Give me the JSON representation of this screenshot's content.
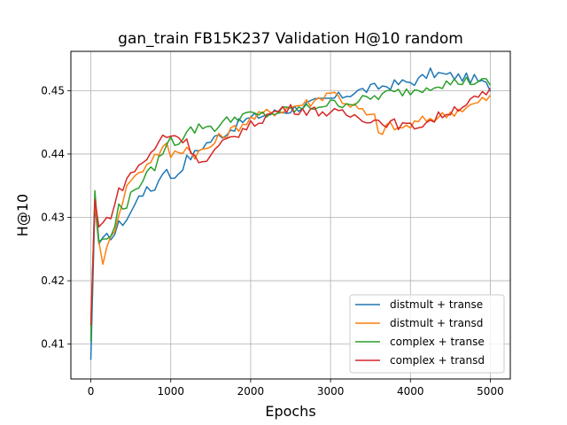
{
  "chart_data": {
    "type": "line",
    "title": "gan_train FB15K237 Validation H@10 random",
    "xlabel": "Epochs",
    "ylabel": "H@10",
    "xlim": [
      -250,
      5250
    ],
    "ylim": [
      0.4045,
      0.4562
    ],
    "xticks": [
      0,
      1000,
      2000,
      3000,
      4000,
      5000
    ],
    "yticks": [
      0.41,
      0.42,
      0.43,
      0.44,
      0.45
    ],
    "xtick_labels": [
      "0",
      "1000",
      "2000",
      "3000",
      "4000",
      "5000"
    ],
    "ytick_labels": [
      "0.41",
      "0.42",
      "0.43",
      "0.44",
      "0.45"
    ],
    "grid": true,
    "legend_position": "lower-right",
    "series": [
      {
        "name": "distmult + transe",
        "color": "#1f77b4",
        "keypoints": [
          [
            0,
            0.4075
          ],
          [
            50,
            0.4318
          ],
          [
            100,
            0.4258
          ],
          [
            150,
            0.4262
          ],
          [
            200,
            0.4268
          ],
          [
            300,
            0.4275
          ],
          [
            350,
            0.4288
          ],
          [
            450,
            0.4298
          ],
          [
            550,
            0.4318
          ],
          [
            600,
            0.4338
          ],
          [
            750,
            0.4343
          ],
          [
            800,
            0.4348
          ],
          [
            850,
            0.4358
          ],
          [
            900,
            0.4372
          ],
          [
            950,
            0.4382
          ],
          [
            1000,
            0.4358
          ],
          [
            1100,
            0.4372
          ],
          [
            1200,
            0.4392
          ],
          [
            1300,
            0.44
          ],
          [
            1400,
            0.4413
          ],
          [
            1550,
            0.4425
          ],
          [
            1700,
            0.4435
          ],
          [
            1900,
            0.4452
          ],
          [
            2100,
            0.446
          ],
          [
            2300,
            0.4465
          ],
          [
            2500,
            0.447
          ],
          [
            2700,
            0.4478
          ],
          [
            2900,
            0.4483
          ],
          [
            3100,
            0.449
          ],
          [
            3300,
            0.4498
          ],
          [
            3500,
            0.4503
          ],
          [
            3700,
            0.4508
          ],
          [
            3900,
            0.4512
          ],
          [
            4100,
            0.4516
          ],
          [
            4250,
            0.4528
          ],
          [
            4400,
            0.4525
          ],
          [
            4600,
            0.4522
          ],
          [
            4800,
            0.4518
          ],
          [
            5000,
            0.4505
          ]
        ]
      },
      {
        "name": "distmult + transd",
        "color": "#ff7f0e",
        "keypoints": [
          [
            0,
            0.4125
          ],
          [
            50,
            0.4325
          ],
          [
            100,
            0.4262
          ],
          [
            150,
            0.4232
          ],
          [
            200,
            0.4248
          ],
          [
            300,
            0.4285
          ],
          [
            400,
            0.433
          ],
          [
            500,
            0.4362
          ],
          [
            600,
            0.4368
          ],
          [
            700,
            0.4385
          ],
          [
            800,
            0.4398
          ],
          [
            900,
            0.4408
          ],
          [
            950,
            0.4412
          ],
          [
            1000,
            0.4398
          ],
          [
            1100,
            0.4405
          ],
          [
            1200,
            0.441
          ],
          [
            1300,
            0.44
          ],
          [
            1400,
            0.4405
          ],
          [
            1500,
            0.4412
          ],
          [
            1600,
            0.4425
          ],
          [
            1800,
            0.444
          ],
          [
            2000,
            0.4455
          ],
          [
            2200,
            0.4465
          ],
          [
            2400,
            0.447
          ],
          [
            2600,
            0.4478
          ],
          [
            2800,
            0.4483
          ],
          [
            3000,
            0.45
          ],
          [
            3150,
            0.4485
          ],
          [
            3300,
            0.4475
          ],
          [
            3450,
            0.4462
          ],
          [
            3550,
            0.4458
          ],
          [
            3600,
            0.443
          ],
          [
            3700,
            0.4445
          ],
          [
            3850,
            0.444
          ],
          [
            4000,
            0.4445
          ],
          [
            4200,
            0.4455
          ],
          [
            4400,
            0.446
          ],
          [
            4600,
            0.447
          ],
          [
            4800,
            0.4478
          ],
          [
            5000,
            0.449
          ]
        ]
      },
      {
        "name": "complex + transe",
        "color": "#2ca02c",
        "keypoints": [
          [
            0,
            0.4105
          ],
          [
            50,
            0.4342
          ],
          [
            100,
            0.4262
          ],
          [
            150,
            0.4268
          ],
          [
            200,
            0.4262
          ],
          [
            300,
            0.4282
          ],
          [
            350,
            0.432
          ],
          [
            450,
            0.432
          ],
          [
            550,
            0.4345
          ],
          [
            650,
            0.436
          ],
          [
            750,
            0.4372
          ],
          [
            850,
            0.439
          ],
          [
            900,
            0.4405
          ],
          [
            1000,
            0.4422
          ],
          [
            1100,
            0.4418
          ],
          [
            1200,
            0.444
          ],
          [
            1300,
            0.4438
          ],
          [
            1400,
            0.4445
          ],
          [
            1550,
            0.4442
          ],
          [
            1700,
            0.4452
          ],
          [
            1900,
            0.4462
          ],
          [
            2100,
            0.446
          ],
          [
            2300,
            0.4465
          ],
          [
            2500,
            0.447
          ],
          [
            2700,
            0.4472
          ],
          [
            2900,
            0.4478
          ],
          [
            3100,
            0.448
          ],
          [
            3300,
            0.4482
          ],
          [
            3500,
            0.4488
          ],
          [
            3700,
            0.4495
          ],
          [
            3900,
            0.4498
          ],
          [
            4100,
            0.4502
          ],
          [
            4300,
            0.451
          ],
          [
            4500,
            0.4512
          ],
          [
            4700,
            0.4515
          ],
          [
            5000,
            0.4512
          ]
        ]
      },
      {
        "name": "complex + transd",
        "color": "#d62728",
        "keypoints": [
          [
            0,
            0.413
          ],
          [
            50,
            0.4328
          ],
          [
            100,
            0.4285
          ],
          [
            150,
            0.429
          ],
          [
            250,
            0.4305
          ],
          [
            350,
            0.434
          ],
          [
            450,
            0.436
          ],
          [
            550,
            0.4375
          ],
          [
            650,
            0.4388
          ],
          [
            750,
            0.4398
          ],
          [
            850,
            0.4418
          ],
          [
            900,
            0.4428
          ],
          [
            1000,
            0.443
          ],
          [
            1100,
            0.4428
          ],
          [
            1200,
            0.4418
          ],
          [
            1300,
            0.44
          ],
          [
            1400,
            0.4385
          ],
          [
            1500,
            0.4395
          ],
          [
            1600,
            0.441
          ],
          [
            1800,
            0.443
          ],
          [
            2000,
            0.4445
          ],
          [
            2200,
            0.446
          ],
          [
            2400,
            0.4472
          ],
          [
            2600,
            0.447
          ],
          [
            2800,
            0.4468
          ],
          [
            3000,
            0.4465
          ],
          [
            3200,
            0.4462
          ],
          [
            3400,
            0.4458
          ],
          [
            3600,
            0.4452
          ],
          [
            3800,
            0.4448
          ],
          [
            4000,
            0.4442
          ],
          [
            4200,
            0.445
          ],
          [
            4400,
            0.4462
          ],
          [
            4600,
            0.4475
          ],
          [
            4800,
            0.4485
          ],
          [
            5000,
            0.4498
          ]
        ]
      }
    ]
  }
}
